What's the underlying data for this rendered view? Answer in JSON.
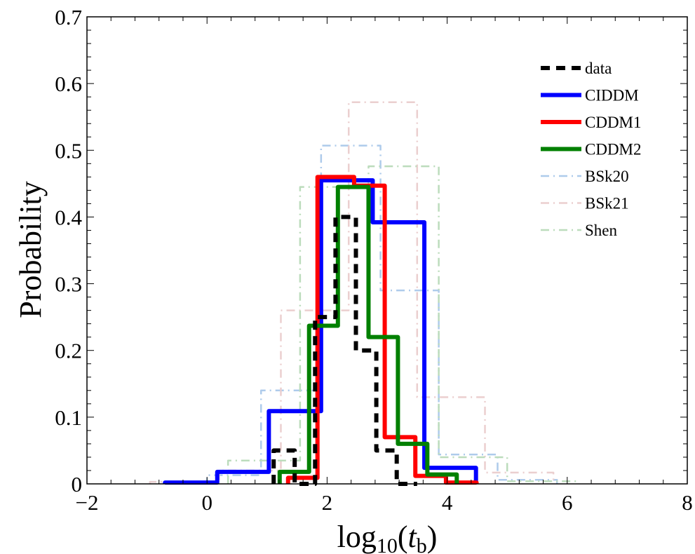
{
  "chart_data": {
    "type": "step-histogram",
    "title": "",
    "xlabel": "log10(t_b)",
    "xlabel_parts": {
      "main": "log",
      "sub1": "10",
      "open": "(",
      "var": "t",
      "sub2": "b",
      "close": ")"
    },
    "ylabel": "Probability",
    "xlim": [
      -2,
      8
    ],
    "ylim": [
      0,
      0.7
    ],
    "xticks": [
      -2,
      0,
      2,
      4,
      6,
      8
    ],
    "xtick_labels": [
      "−2",
      "0",
      "2",
      "4",
      "6",
      "8"
    ],
    "yticks": [
      0,
      0.1,
      0.2,
      0.3,
      0.4,
      0.5,
      0.6,
      0.7
    ],
    "ytick_labels": [
      "0",
      "0.1",
      "0.2",
      "0.3",
      "0.4",
      "0.5",
      "0.6",
      "0.7"
    ],
    "x_minor_step": 0.4,
    "y_minor_step": 0.02,
    "grid": false,
    "legend_position": "top-right",
    "series": [
      {
        "name": "BSk20",
        "color": "#aecbeb",
        "style": "dashdot",
        "edges": [
          -0.95,
          0.0,
          0.9,
          1.9,
          2.89,
          3.86,
          4.84,
          5.83
        ],
        "values": [
          0.003,
          0.013,
          0.14,
          0.507,
          0.29,
          0.044,
          0.006
        ]
      },
      {
        "name": "BSk21",
        "color": "#ebcfcf",
        "style": "dashdot",
        "edges": [
          -0.95,
          0.2,
          1.23,
          2.36,
          3.5,
          4.63,
          5.77
        ],
        "values": [
          0.003,
          0.02,
          0.26,
          0.572,
          0.13,
          0.017
        ]
      },
      {
        "name": "Shen",
        "color": "#bcdcbc",
        "style": "dashdot",
        "edges": [
          0.35,
          1.55,
          2.69,
          3.86,
          5.0,
          6.15
        ],
        "values": [
          0.035,
          0.445,
          0.476,
          0.04,
          0.004
        ]
      },
      {
        "name": "CIDDM",
        "color": "#0000ff",
        "style": "solid",
        "edges": [
          -0.7,
          0.17,
          1.03,
          1.9,
          2.76,
          3.62,
          4.48
        ],
        "values": [
          0.002,
          0.018,
          0.109,
          0.455,
          0.392,
          0.024
        ]
      },
      {
        "name": "CDDM1",
        "color": "#ff0000",
        "style": "solid",
        "edges": [
          1.35,
          1.84,
          2.45,
          2.96,
          3.47,
          3.98,
          4.49
        ],
        "values": [
          0.009,
          0.46,
          0.447,
          0.07,
          0.012,
          0.002
        ]
      },
      {
        "name": "CDDM2",
        "color": "#008000",
        "style": "solid",
        "edges": [
          1.21,
          1.7,
          2.18,
          2.69,
          3.18,
          3.67,
          4.16
        ],
        "values": [
          0.018,
          0.237,
          0.445,
          0.22,
          0.06,
          0.014
        ]
      },
      {
        "name": "data",
        "color": "#000000",
        "style": "dashed",
        "edges": [
          1.11,
          1.46,
          1.8,
          2.14,
          2.48,
          2.82,
          3.16,
          3.5
        ],
        "values": [
          0.05,
          0.0,
          0.25,
          0.4,
          0.2,
          0.05,
          0.0
        ]
      }
    ],
    "legend_order": [
      "data",
      "CIDDM",
      "CDDM1",
      "CDDM2",
      "BSk20",
      "BSk21",
      "Shen"
    ]
  }
}
